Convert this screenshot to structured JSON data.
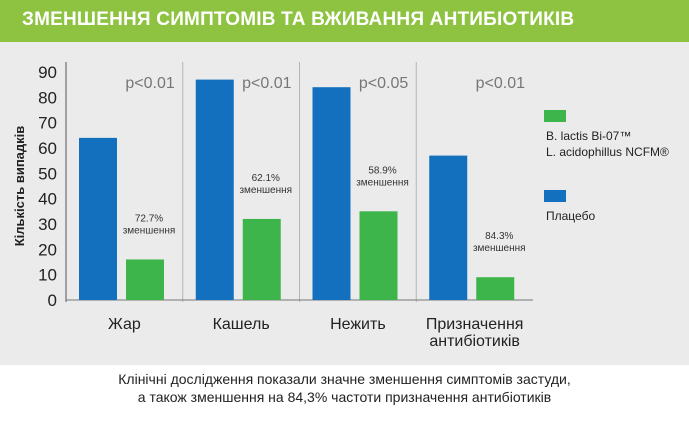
{
  "header": {
    "title": "ЗМЕНШЕННЯ СИМПТОМІВ ТА ВЖИВАННЯ АНТИБІОТИКІВ"
  },
  "colors": {
    "header_bg": "#8dc340",
    "panel_bg": "#ebebeb",
    "probiotic": "#3db54a",
    "placebo": "#1270bf"
  },
  "chart_data": {
    "type": "bar",
    "ylabel": "Кількість випадків",
    "ylim": [
      0,
      90
    ],
    "yticks": [
      0,
      10,
      20,
      30,
      40,
      50,
      60,
      70,
      80,
      90
    ],
    "grid": false,
    "legend_position": "right",
    "categories": [
      [
        "Жар"
      ],
      [
        "Кашель"
      ],
      [
        "Нежить"
      ],
      [
        "Призначення",
        "антибіотиків"
      ]
    ],
    "series": [
      {
        "name": "Плацебо",
        "color": "#1270bf",
        "values": [
          64,
          87,
          84,
          57
        ]
      },
      {
        "name": "B. lactis Bi-07™ L. acidophillus NCFM®",
        "color": "#3db54a",
        "values": [
          16,
          32,
          35,
          9
        ]
      }
    ],
    "p_values": [
      "p<0.01",
      "p<0.01",
      "p<0.05",
      "p<0.01"
    ],
    "reductions": [
      "72.7%",
      "62.1%",
      "58.9%",
      "84.3%"
    ],
    "reduction_word": "зменшення",
    "legend": [
      {
        "color": "#3db54a",
        "lines": [
          "B. lactis Bi-07™",
          "L. acidophillus NCFM®"
        ]
      },
      {
        "color": "#1270bf",
        "lines": [
          "Плацебо"
        ]
      }
    ]
  },
  "footer": {
    "line1": "Клінічні дослідження показали значне зменшення симптомів застуди,",
    "line2": "а також зменшення на 84,3% частоти призначення антибіотиків"
  }
}
